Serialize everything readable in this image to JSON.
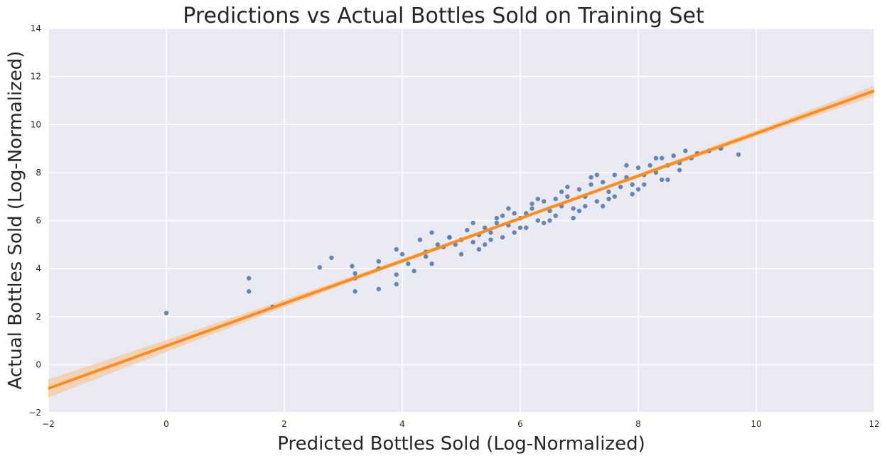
{
  "chart_data": {
    "type": "scatter",
    "title": "Predictions vs Actual Bottles Sold on Training Set",
    "xlabel": "Predicted Bottles Sold (Log-Normalized)",
    "ylabel": "Actual Bottles Sold (Log-Normalized)",
    "xlim": [
      -2,
      12
    ],
    "ylim": [
      -2,
      14
    ],
    "xticks": [
      -2,
      0,
      2,
      4,
      6,
      8,
      10,
      12
    ],
    "yticks": [
      -2,
      0,
      2,
      4,
      6,
      8,
      10,
      12,
      14
    ],
    "xtick_labels": [
      "−2",
      "0",
      "2",
      "4",
      "6",
      "8",
      "10",
      "12"
    ],
    "ytick_labels": [
      "−2",
      "0",
      "2",
      "4",
      "6",
      "8",
      "10",
      "12",
      "14"
    ],
    "grid": true,
    "background_color": "#EAEAF2",
    "grid_color": "#FFFFFF",
    "point_color": "#4C72B0",
    "line_color": "#FF8C1A",
    "band_color": "#F5C9A0",
    "regression_line": {
      "slope": 0.885,
      "intercept": 0.78
    },
    "series": [
      {
        "x": [
          0.0,
          1.4,
          1.4,
          1.8,
          2.6,
          2.8,
          3.15,
          3.2,
          3.2,
          3.2,
          3.6,
          3.6,
          3.6,
          3.9,
          3.9,
          3.9,
          4.0,
          4.1,
          4.2,
          4.3,
          4.4,
          4.5,
          4.6,
          4.7,
          4.8,
          4.9,
          5.0,
          5.1,
          5.2,
          5.3,
          5.4,
          5.5,
          5.6,
          5.7,
          5.8,
          5.9,
          6.0,
          6.1,
          6.2,
          6.3,
          6.4,
          6.5,
          6.6,
          6.7,
          6.8,
          6.9,
          7.0,
          7.1,
          7.2,
          7.3,
          7.4,
          7.5,
          7.6,
          7.7,
          7.8,
          7.9,
          8.0,
          8.1,
          8.2,
          8.3,
          8.4,
          8.5,
          8.6,
          8.7,
          8.8,
          8.9,
          9.0,
          9.2,
          9.4,
          9.7,
          4.5,
          5.0,
          5.5,
          6.0,
          6.5,
          7.0,
          7.5,
          8.0,
          8.5,
          5.2,
          5.8,
          6.3,
          6.8,
          7.3,
          7.8,
          8.3,
          4.8,
          5.6,
          6.2,
          6.6,
          7.1,
          7.6,
          8.1,
          8.7,
          5.4,
          6.4,
          7.4,
          5.9,
          6.9,
          7.9,
          4.4,
          5.3,
          6.1,
          7.2,
          8.4,
          6.7,
          5.7
        ],
        "y": [
          2.15,
          3.6,
          3.05,
          2.4,
          4.05,
          4.45,
          4.1,
          3.8,
          3.6,
          3.05,
          4.3,
          4.0,
          3.15,
          4.8,
          3.75,
          3.35,
          4.6,
          4.2,
          3.9,
          5.2,
          4.7,
          5.5,
          5.0,
          4.9,
          5.3,
          5.0,
          5.2,
          5.6,
          5.1,
          5.4,
          5.7,
          5.5,
          5.9,
          6.2,
          5.8,
          6.3,
          6.1,
          6.3,
          6.5,
          6.0,
          6.8,
          6.4,
          6.9,
          6.6,
          7.0,
          6.5,
          7.3,
          7.0,
          7.5,
          6.8,
          7.6,
          7.2,
          7.9,
          7.4,
          7.8,
          7.5,
          8.2,
          7.9,
          8.3,
          8.0,
          8.6,
          8.3,
          8.7,
          8.4,
          8.9,
          8.6,
          8.8,
          8.9,
          9.0,
          8.75,
          4.2,
          4.6,
          5.2,
          5.7,
          6.0,
          6.4,
          6.9,
          7.3,
          7.7,
          5.9,
          6.5,
          6.9,
          7.4,
          7.9,
          8.3,
          8.6,
          5.3,
          6.1,
          6.7,
          6.2,
          6.6,
          7.0,
          7.5,
          8.1,
          5.0,
          5.9,
          6.6,
          5.5,
          6.1,
          7.1,
          4.5,
          4.8,
          5.7,
          7.8,
          7.7,
          7.2,
          5.3
        ]
      }
    ]
  }
}
